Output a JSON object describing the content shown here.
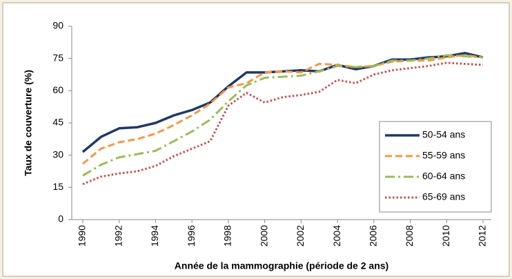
{
  "chart_data": {
    "type": "line",
    "xlabel": "Année de la mammographie (période de 2 ans)",
    "ylabel": "Taux de couverture (%)",
    "x": [
      1990,
      1991,
      1992,
      1993,
      1994,
      1995,
      1996,
      1997,
      1998,
      1999,
      2000,
      2001,
      2002,
      2003,
      2004,
      2005,
      2006,
      2007,
      2008,
      2009,
      2010,
      2011,
      2012
    ],
    "xlim": [
      1990,
      2012
    ],
    "xticks": [
      1990,
      1992,
      1994,
      1996,
      1998,
      2000,
      2002,
      2004,
      2006,
      2008,
      2010,
      2012
    ],
    "ylim": [
      0,
      90
    ],
    "yticks": [
      0,
      15,
      30,
      45,
      60,
      75,
      90
    ],
    "legend": "right",
    "series": [
      {
        "name": "50-54 ans",
        "color": "#1f3864",
        "dash": "solid",
        "values": [
          31.5,
          38.5,
          42.5,
          43,
          45,
          48.5,
          51,
          54.5,
          62,
          68.5,
          68.5,
          69,
          69.5,
          69,
          72,
          70,
          71.5,
          74.5,
          74.5,
          75.5,
          76,
          77.5,
          75.5
        ]
      },
      {
        "name": "55-59 ans",
        "color": "#f79646",
        "dash": "dashed",
        "values": [
          26,
          33,
          36,
          37.5,
          40,
          44,
          48.5,
          54,
          61.5,
          63.5,
          68.5,
          69,
          68.5,
          72.5,
          72,
          71,
          71.5,
          73.5,
          74,
          74,
          75.5,
          76.5,
          75.5
        ]
      },
      {
        "name": "60-64 ans",
        "color": "#9bbb59",
        "dash": "dashdot",
        "values": [
          20.5,
          25.5,
          29,
          30.5,
          32,
          36.5,
          41,
          46.5,
          55,
          62.5,
          66,
          66.5,
          67,
          69,
          71.5,
          71,
          71.5,
          74,
          74,
          75,
          76.5,
          76,
          75.5
        ]
      },
      {
        "name": "65-69 ans",
        "color": "#c0504d",
        "dash": "dotted",
        "values": [
          16.5,
          20,
          21.5,
          22.5,
          25,
          29.5,
          33,
          36.5,
          53,
          59,
          54.5,
          57,
          58,
          59.5,
          65,
          63.5,
          67.5,
          69.5,
          70.5,
          71.5,
          73,
          72.5,
          72
        ]
      }
    ]
  }
}
